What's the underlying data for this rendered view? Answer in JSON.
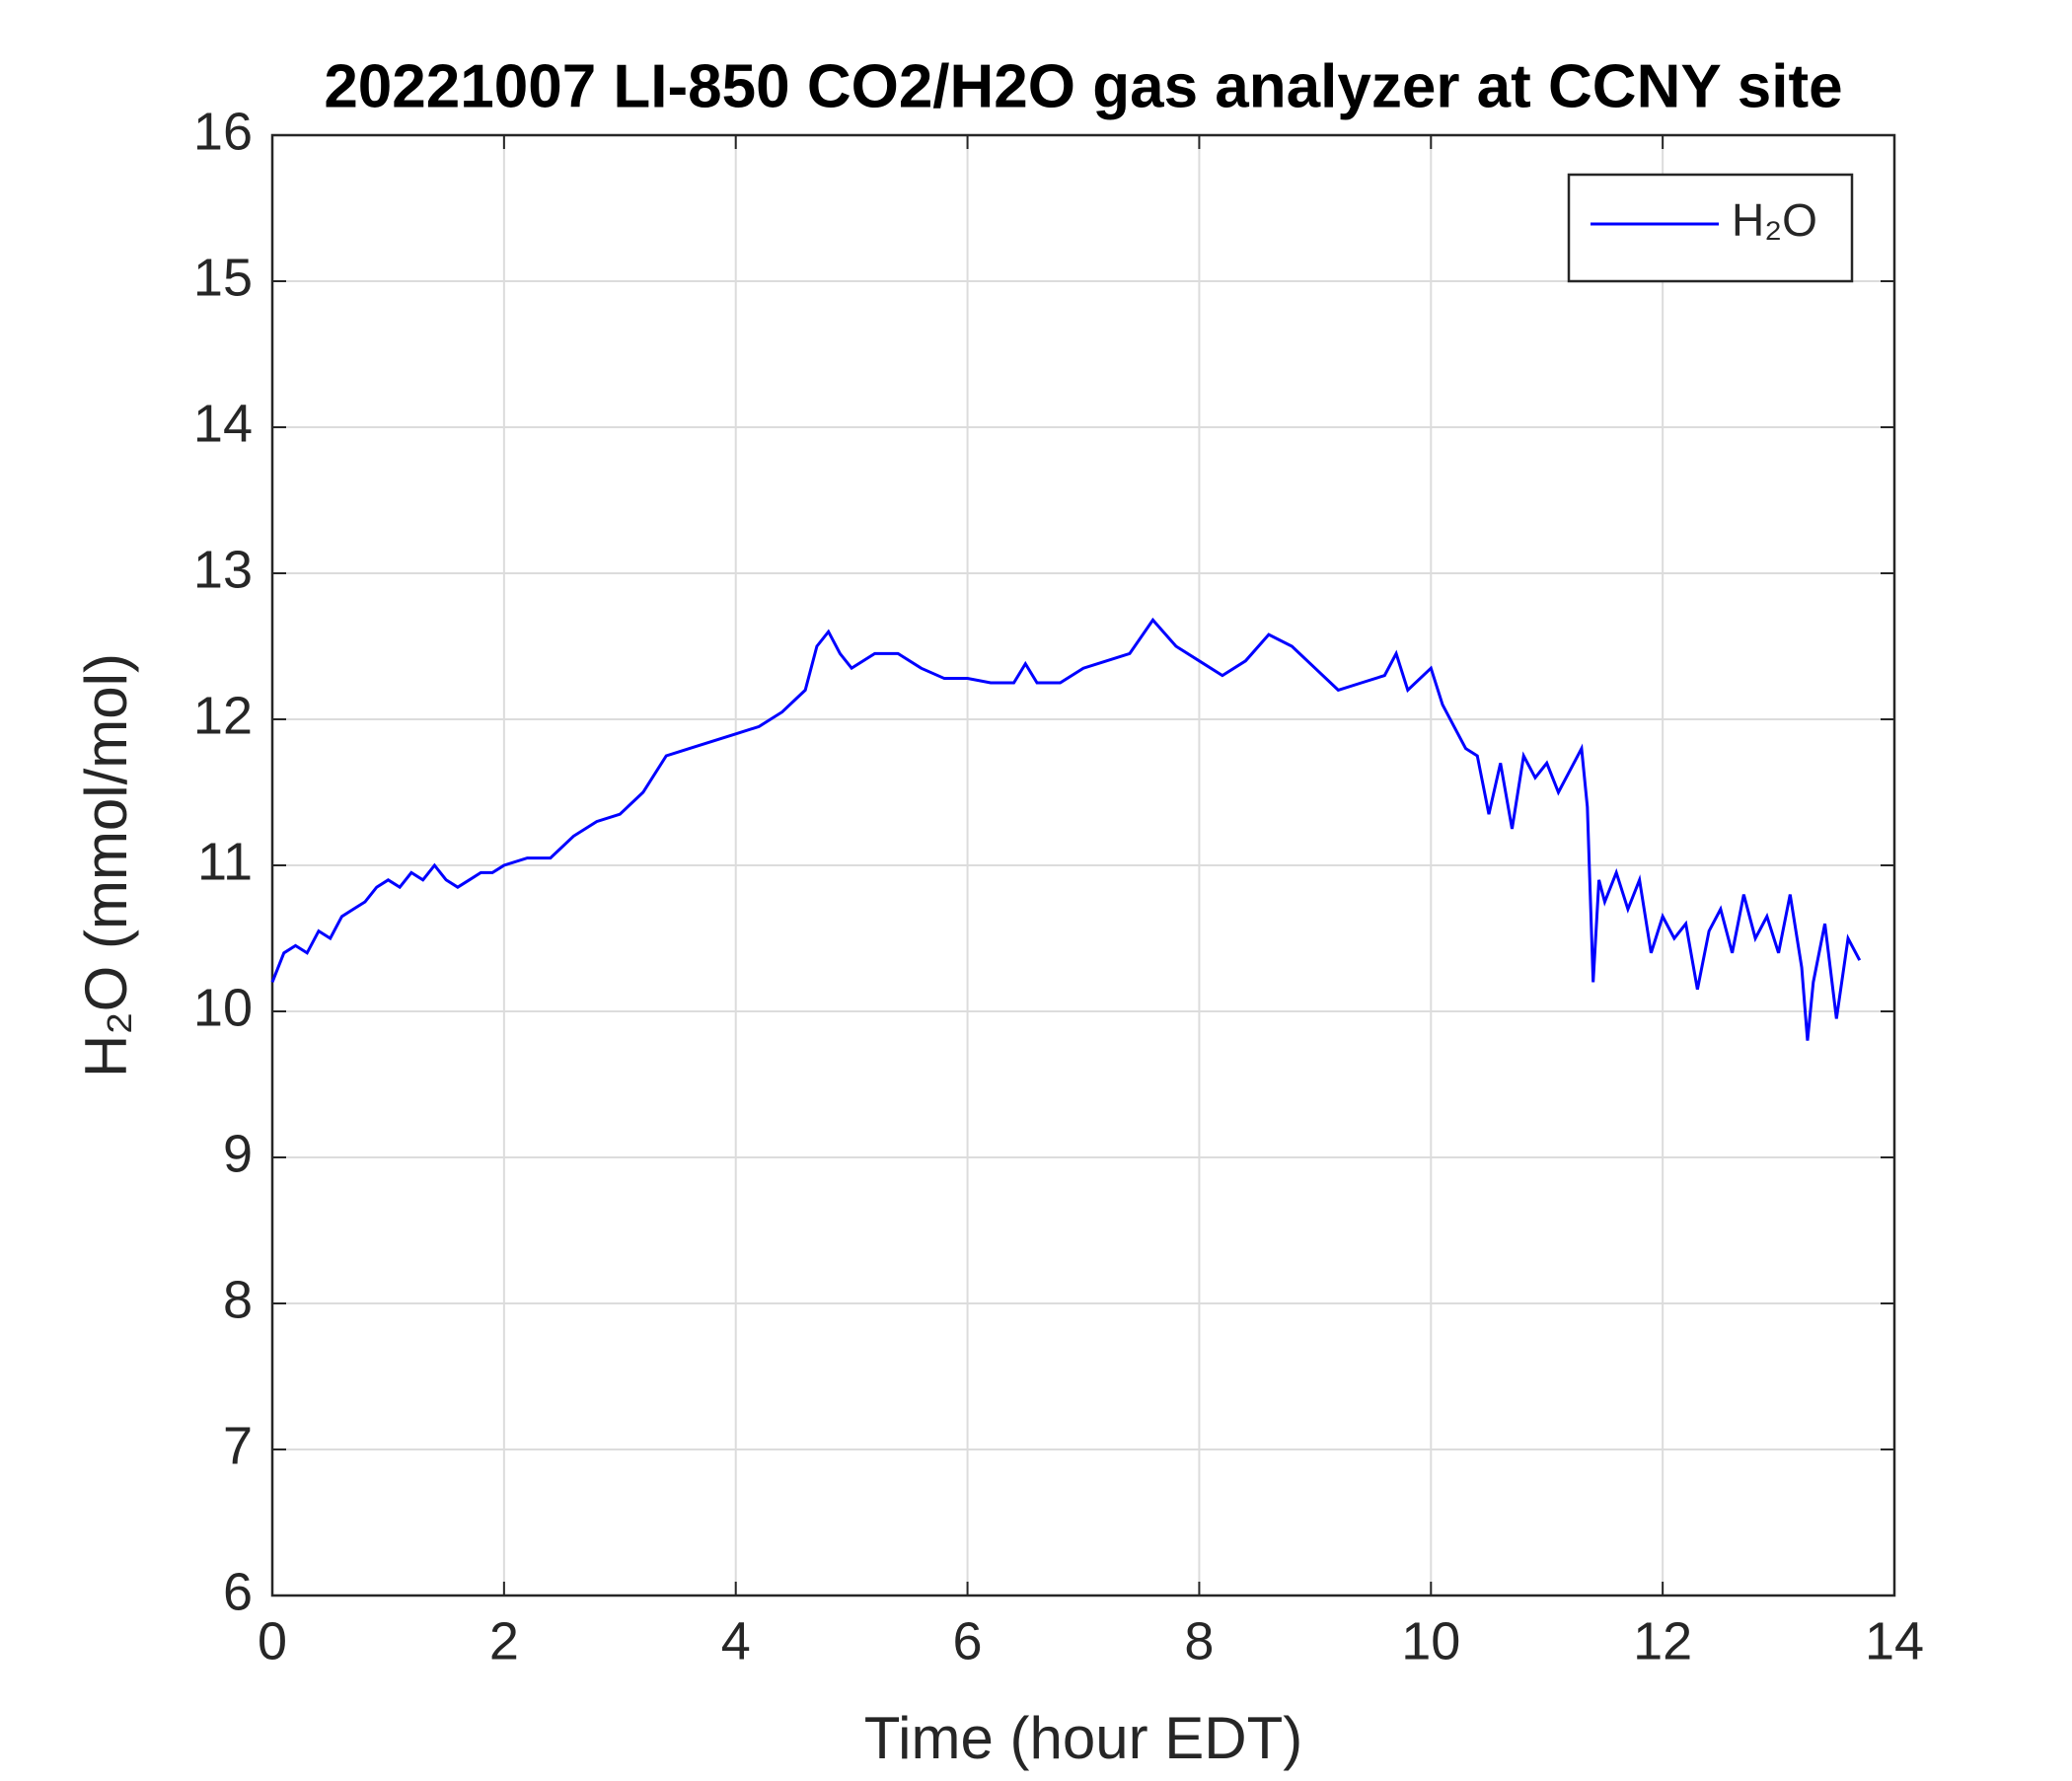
{
  "chart_data": {
    "type": "line",
    "title": "20221007 LI-850 CO2/H2O gas analyzer at CCNY site",
    "x_label": "Time (hour EDT)",
    "y_label": "H₂O (mmol/mol)",
    "x": [
      0,
      0.1,
      0.2,
      0.3,
      0.4,
      0.5,
      0.6,
      0.7,
      0.8,
      0.9,
      1.0,
      1.1,
      1.2,
      1.3,
      1.4,
      1.5,
      1.6,
      1.7,
      1.8,
      1.9,
      2.0,
      2.2,
      2.4,
      2.6,
      2.8,
      3.0,
      3.2,
      3.4,
      3.6,
      3.8,
      4.0,
      4.2,
      4.4,
      4.6,
      4.7,
      4.8,
      4.9,
      5.0,
      5.2,
      5.4,
      5.6,
      5.8,
      6.0,
      6.2,
      6.4,
      6.5,
      6.6,
      6.8,
      7.0,
      7.2,
      7.4,
      7.6,
      7.8,
      8.0,
      8.2,
      8.4,
      8.6,
      8.8,
      9.0,
      9.2,
      9.4,
      9.6,
      9.7,
      9.8,
      10.0,
      10.1,
      10.2,
      10.3,
      10.4,
      10.5,
      10.6,
      10.7,
      10.8,
      10.9,
      11.0,
      11.1,
      11.2,
      11.3,
      11.35,
      11.4,
      11.45,
      11.5,
      11.6,
      11.7,
      11.8,
      11.9,
      12.0,
      12.1,
      12.2,
      12.3,
      12.4,
      12.5,
      12.6,
      12.7,
      12.8,
      12.9,
      13.0,
      13.1,
      13.2,
      13.25,
      13.3,
      13.4,
      13.5,
      13.6,
      13.7
    ],
    "series": [
      {
        "name": "H₂O",
        "color": "#0000ff",
        "values": [
          10.2,
          10.4,
          10.45,
          10.4,
          10.55,
          10.5,
          10.65,
          10.7,
          10.75,
          10.85,
          10.9,
          10.85,
          10.95,
          10.9,
          11.0,
          10.9,
          10.85,
          10.9,
          10.95,
          10.95,
          11.0,
          11.05,
          11.05,
          11.2,
          11.3,
          11.35,
          11.5,
          11.75,
          11.8,
          11.85,
          11.9,
          11.95,
          12.05,
          12.2,
          12.5,
          12.6,
          12.45,
          12.35,
          12.45,
          12.45,
          12.35,
          12.28,
          12.28,
          12.25,
          12.25,
          12.38,
          12.25,
          12.25,
          12.35,
          12.4,
          12.45,
          12.68,
          12.5,
          12.4,
          12.3,
          12.4,
          12.58,
          12.5,
          12.35,
          12.2,
          12.25,
          12.3,
          12.45,
          12.2,
          12.35,
          12.1,
          11.95,
          11.8,
          11.75,
          11.35,
          11.7,
          11.25,
          11.75,
          11.6,
          11.7,
          11.5,
          11.65,
          11.8,
          11.4,
          10.2,
          10.9,
          10.75,
          10.95,
          10.7,
          10.9,
          10.4,
          10.65,
          10.5,
          10.6,
          10.15,
          10.55,
          10.7,
          10.4,
          10.8,
          10.5,
          10.65,
          10.4,
          10.8,
          10.3,
          9.8,
          10.2,
          10.6,
          9.95,
          10.5,
          10.35
        ]
      }
    ],
    "xlim": [
      0,
      14
    ],
    "xticks": [
      0,
      2,
      4,
      6,
      8,
      10,
      12,
      14
    ],
    "ylim": [
      6,
      16
    ],
    "yticks": [
      6,
      7,
      8,
      9,
      10,
      11,
      12,
      13,
      14,
      15,
      16
    ],
    "grid": true,
    "legend": "upper right"
  }
}
